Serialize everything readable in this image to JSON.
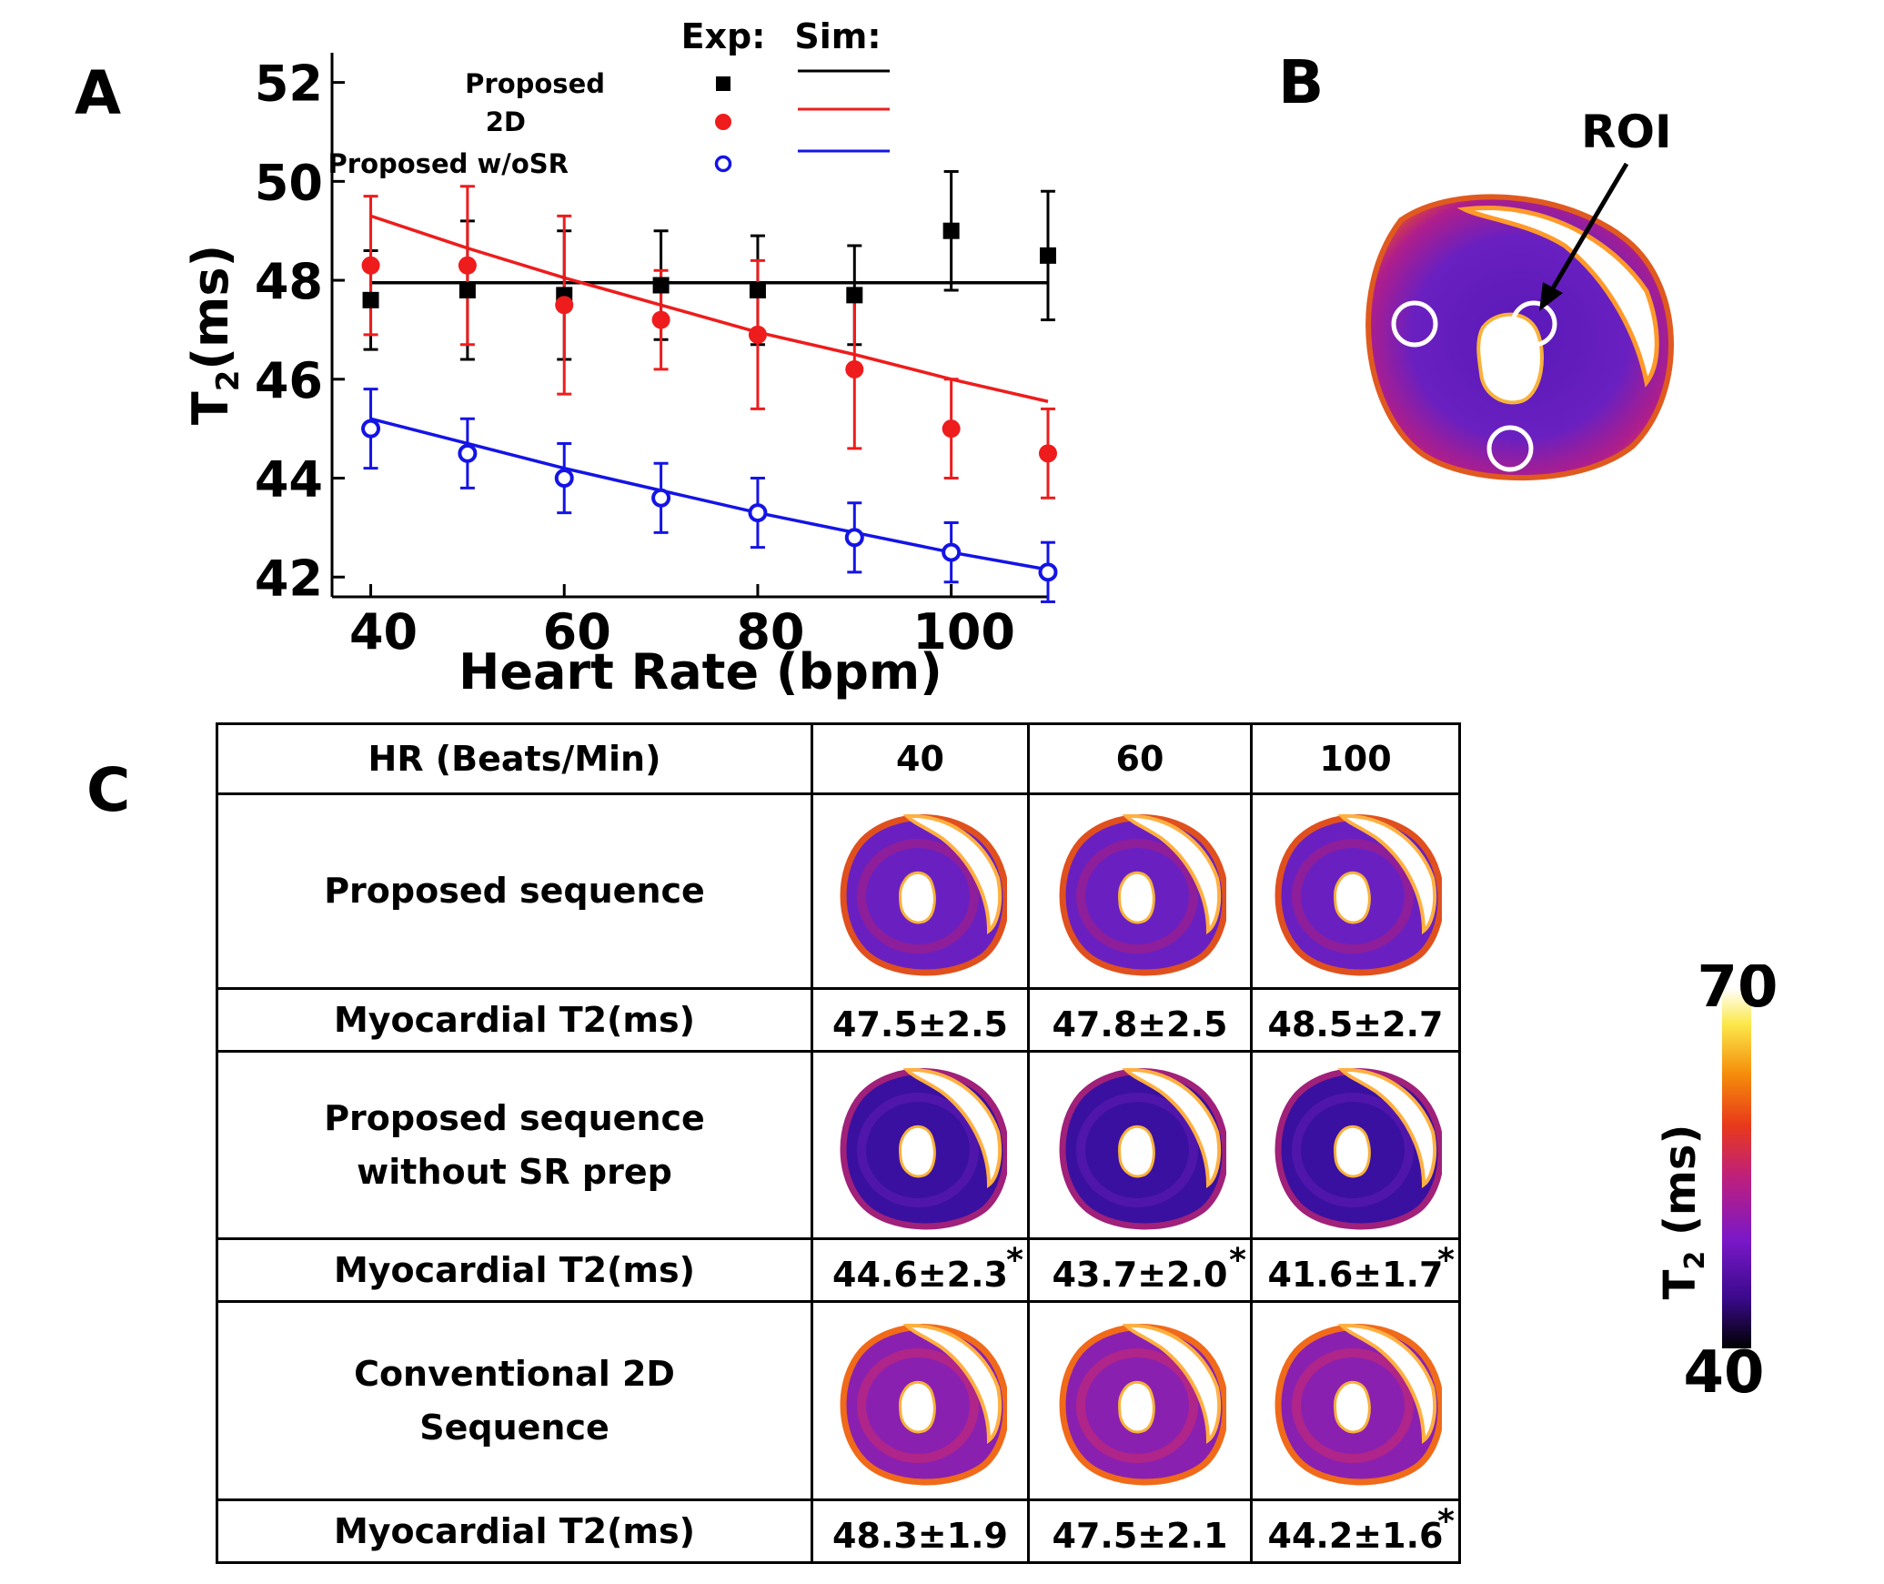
{
  "panel_labels": {
    "a": "A",
    "b": "B",
    "c": "C"
  },
  "chart_data": {
    "type": "scatter",
    "xlabel": "Heart Rate (bpm)",
    "ylabel": "T2(ms)",
    "ylabel_main": "T",
    "ylabel_sub": "2",
    "ylabel_rest": "(ms)",
    "xlim": [
      36,
      110
    ],
    "ylim": [
      41.6,
      52.6
    ],
    "x_ticks": [
      40,
      60,
      80,
      100
    ],
    "y_ticks": [
      42,
      44,
      46,
      48,
      50,
      52
    ],
    "legend": {
      "position": "top",
      "exp_header": "Exp:",
      "sim_header": "Sim:",
      "entries": [
        {
          "name": "Proposed",
          "color": "#000000",
          "marker": "square"
        },
        {
          "name": "2D",
          "color": "#ee1c1c",
          "marker": "filled-circle"
        },
        {
          "name": "Proposed w/oSR",
          "color": "#1414e6",
          "marker": "open-circle"
        }
      ]
    },
    "series": [
      {
        "name": "Proposed",
        "color": "#000000",
        "marker": "square",
        "x": [
          40,
          50,
          60,
          70,
          80,
          90,
          100,
          110
        ],
        "y": [
          47.6,
          47.8,
          47.7,
          47.9,
          47.8,
          47.7,
          49.0,
          48.5
        ],
        "err": [
          1.0,
          1.4,
          1.3,
          1.1,
          1.1,
          1.0,
          1.2,
          1.3
        ]
      },
      {
        "name": "2D",
        "color": "#ee1c1c",
        "marker": "filled-circle",
        "x": [
          40,
          50,
          60,
          70,
          80,
          90,
          100,
          110
        ],
        "y": [
          48.3,
          48.3,
          47.5,
          47.2,
          46.9,
          46.2,
          45.0,
          44.5
        ],
        "err": [
          1.4,
          1.6,
          1.8,
          1.0,
          1.5,
          1.6,
          1.0,
          0.9
        ]
      },
      {
        "name": "Proposed w/oSR",
        "color": "#1414e6",
        "marker": "open-circle",
        "x": [
          40,
          50,
          60,
          70,
          80,
          90,
          100,
          110
        ],
        "y": [
          45.0,
          44.5,
          44.0,
          43.6,
          43.3,
          42.8,
          42.5,
          42.1
        ],
        "err": [
          0.8,
          0.7,
          0.7,
          0.7,
          0.7,
          0.7,
          0.6,
          0.6
        ]
      }
    ],
    "sim_lines": [
      {
        "name": "Proposed",
        "color": "#000000",
        "x": [
          40,
          110
        ],
        "y": [
          47.95,
          47.95
        ]
      },
      {
        "name": "2D",
        "color": "#ee1c1c",
        "x": [
          40,
          50,
          60,
          70,
          80,
          90,
          100,
          110
        ],
        "y": [
          49.3,
          48.65,
          48.05,
          47.5,
          46.95,
          46.5,
          46.0,
          45.55
        ]
      },
      {
        "name": "Proposed w/oSR",
        "color": "#1414e6",
        "x": [
          40,
          50,
          60,
          70,
          80,
          90,
          100,
          110
        ],
        "y": [
          45.2,
          44.7,
          44.2,
          43.75,
          43.3,
          42.9,
          42.5,
          42.15
        ]
      }
    ]
  },
  "roi_label": "ROI",
  "table": {
    "header": {
      "label": "HR (Beats/Min)",
      "cols": [
        "40",
        "60",
        "100"
      ]
    },
    "sections": [
      {
        "name": "Proposed sequence",
        "name_lines": [
          "Proposed sequence"
        ],
        "tone": "proposed",
        "row_label": "Myocardial T2(ms)",
        "values": [
          "47.5±2.5",
          "47.8±2.5",
          "48.5±2.7"
        ],
        "stars": [
          "",
          "",
          ""
        ]
      },
      {
        "name": "Proposed sequence without SR prep",
        "name_lines": [
          "Proposed sequence",
          "without SR prep"
        ],
        "tone": "wosr",
        "row_label": "Myocardial T2(ms)",
        "values": [
          "44.6±2.3",
          "43.7±2.0",
          "41.6±1.7"
        ],
        "stars": [
          "*",
          "*",
          "*"
        ]
      },
      {
        "name": "Conventional 2D Sequence",
        "name_lines": [
          "Conventional 2D",
          "Sequence"
        ],
        "tone": "conv2d",
        "row_label": "Myocardial T2(ms)",
        "values": [
          "48.3±1.9",
          "47.5±2.1",
          "44.2±1.6"
        ],
        "stars": [
          "",
          "",
          "*"
        ]
      }
    ]
  },
  "colorbar": {
    "label": "T2 (ms)",
    "label_main": "T",
    "label_sub": "2",
    "label_rest": " (ms)",
    "max": "70",
    "min": "40",
    "colors": [
      "#000000",
      "#3a0a8c",
      "#7a18c8",
      "#c0207a",
      "#e83a1a",
      "#f58c0a",
      "#fbe84a",
      "#ffffff"
    ]
  }
}
